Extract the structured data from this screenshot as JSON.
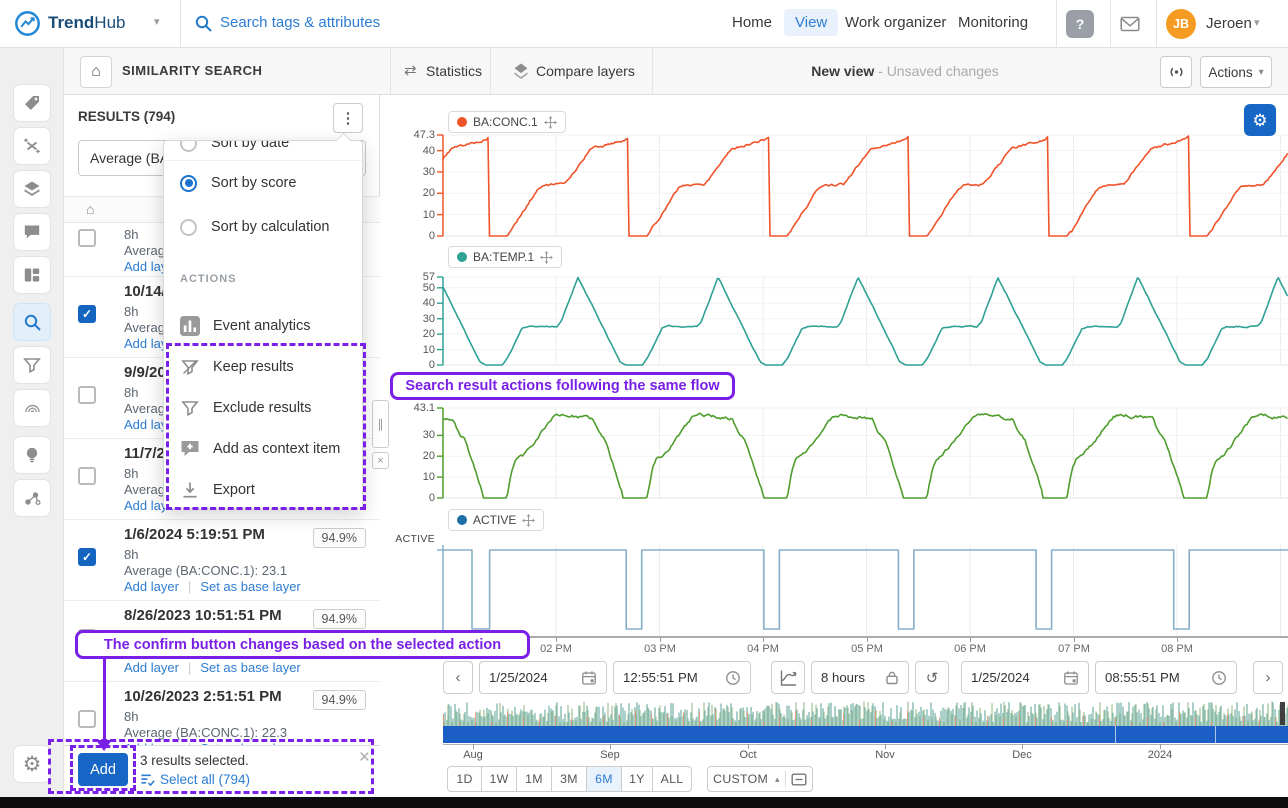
{
  "topbar": {
    "logo_bold": "Trend",
    "logo_light": "Hub",
    "search_placeholder": "Search tags & attributes",
    "nav": [
      "Home",
      "View",
      "Work organizer",
      "Monitoring"
    ],
    "active_nav": "View",
    "user": {
      "initials": "JB",
      "name": "Jeroen"
    }
  },
  "colors": {
    "accent": "#2d7dd2",
    "annotation": "#7a1fe8",
    "primary_button": "#1766c5",
    "avatar_bg": "#f59b22",
    "selection_bar": "#1b5fc6"
  },
  "sidebar": {
    "items": [
      {
        "icon": "tag"
      },
      {
        "icon": "formula"
      },
      {
        "icon": "layers"
      },
      {
        "icon": "comment"
      },
      {
        "icon": "dashboard"
      },
      {
        "icon": "search",
        "active": true
      },
      {
        "icon": "funnel"
      },
      {
        "icon": "fingerprint"
      },
      {
        "icon": "lightbulb"
      },
      {
        "icon": "nodes"
      },
      {
        "icon": "gear"
      }
    ]
  },
  "panel_header": {
    "title": "SIMILARITY SEARCH",
    "tabs": [
      {
        "label": "Statistics",
        "icon": "swap"
      },
      {
        "label": "Compare layers",
        "icon": "compare"
      }
    ],
    "view_title": "New view",
    "view_status": "- Unsaved changes",
    "actions_label": "Actions"
  },
  "results": {
    "title": "RESULTS (794)",
    "filter_value": "Average (BA",
    "items": [
      {
        "date": "",
        "duration": "8h",
        "average": "Average (B",
        "links": [
          "Add layer"
        ],
        "score": "",
        "checked": false
      },
      {
        "date": "10/14/20",
        "duration": "8h",
        "average": "Average (B",
        "links": [
          "Add layer"
        ],
        "score": "",
        "checked": true
      },
      {
        "date": "9/9/2023",
        "duration": "8h",
        "average": "Average (B",
        "links": [
          "Add layer"
        ],
        "score": "",
        "checked": false
      },
      {
        "date": "11/7/202",
        "duration": "8h",
        "average": "Average (B",
        "links": [
          "Add layer"
        ],
        "score": "",
        "checked": false
      },
      {
        "date": "1/6/2024 5:19:51 PM",
        "duration": "8h",
        "average": "Average (BA:CONC.1): 23.1",
        "links": [
          "Add layer",
          "Set as base layer"
        ],
        "score": "94.9%",
        "checked": true
      },
      {
        "date": "8/26/2023 10:51:51 PM",
        "duration": "",
        "average": "",
        "links": [
          "Add layer",
          "Set as base layer"
        ],
        "score": "94.9%",
        "checked": false
      },
      {
        "date": "10/26/2023 2:51:51 PM",
        "duration": "8h",
        "average": "Average (BA:CONC.1): 22.3",
        "links": [
          "Add layer",
          "Set as base layer"
        ],
        "score": "94.9%",
        "checked": false
      }
    ],
    "footer": {
      "confirm_label": "Add",
      "selected_text": "3 results selected.",
      "select_all": "Select all (794)"
    }
  },
  "menu": {
    "partial_option": "Sort by date",
    "options": [
      {
        "label": "Sort by score",
        "selected": true
      },
      {
        "label": "Sort by calculation",
        "selected": false
      }
    ],
    "section_label": "ACTIONS",
    "actions": [
      {
        "label": "Event analytics",
        "icon": "analytics"
      },
      {
        "label": "Keep results",
        "icon": "keep"
      },
      {
        "label": "Exclude results",
        "icon": "exclude"
      },
      {
        "label": "Add as context item",
        "icon": "context"
      },
      {
        "label": "Export",
        "icon": "export"
      }
    ]
  },
  "annotations": {
    "flow": "Search result actions following the same flow",
    "confirm": "The confirm button changes based on the selected action"
  },
  "timebar": {
    "start_date": "1/25/2024",
    "start_time": "12:55:51 PM",
    "duration": "8 hours",
    "end_date": "1/25/2024",
    "end_time": "08:55:51 PM"
  },
  "ranges": {
    "options": [
      "1D",
      "1W",
      "1M",
      "3M",
      "6M",
      "1Y",
      "ALL"
    ],
    "active": "6M",
    "custom_label": "CUSTOM"
  },
  "chart_data": {
    "type": "multi-trend",
    "x_axis": {
      "labels": [
        "02 PM",
        "03 PM",
        "04 PM",
        "05 PM",
        "06 PM",
        "07 PM",
        "08 PM"
      ],
      "start": "1/25/2024 12:55:51 PM",
      "end": "1/25/2024 08:55:51 PM",
      "duration_hours": 8
    },
    "charts": [
      {
        "name": "BA:CONC.1",
        "type": "line",
        "color": "#f0532a",
        "y_ticks": [
          "47.3",
          "40",
          "30",
          "20",
          "10",
          "0"
        ],
        "y_max": 47.3,
        "period_hours": 1.35,
        "cycle_profile": [
          [
            0,
            0
          ],
          [
            0.13,
            0
          ],
          [
            0.16,
            3
          ],
          [
            0.36,
            23
          ],
          [
            0.4,
            24
          ],
          [
            0.53,
            24
          ],
          [
            0.57,
            27
          ],
          [
            0.73,
            41
          ],
          [
            0.97,
            45
          ],
          [
            1,
            46.5
          ]
        ],
        "description": "repeating ramp to mid plateau then upper plateau, sharp drop to 0"
      },
      {
        "name": "BA:TEMP.1",
        "type": "line",
        "color": "#2fa195",
        "y_ticks": [
          "57",
          "50",
          "40",
          "30",
          "20",
          "10",
          "0"
        ],
        "y_max": 57,
        "period_hours": 1.35,
        "cycle_profile": [
          [
            0,
            57
          ],
          [
            0.3,
            2
          ],
          [
            0.34,
            0
          ],
          [
            0.46,
            0
          ],
          [
            0.5,
            5
          ],
          [
            0.6,
            24
          ],
          [
            0.64,
            25
          ],
          [
            0.85,
            25
          ],
          [
            0.88,
            28
          ],
          [
            1,
            57
          ]
        ],
        "description": "peak, decline to 0, flat, rise to mid plateau, spike back to peak"
      },
      {
        "name": null,
        "type": "line",
        "color": "#4e9d2d",
        "y_ticks": [
          "43.1",
          "30",
          "20",
          "10",
          "0"
        ],
        "y_max": 43.1,
        "period_hours": 1.35,
        "cycle_profile": [
          [
            0,
            0
          ],
          [
            0.17,
            0
          ],
          [
            0.21,
            14
          ],
          [
            0.24,
            19
          ],
          [
            0.28,
            20
          ],
          [
            0.33,
            24
          ],
          [
            0.5,
            39
          ],
          [
            0.56,
            40
          ],
          [
            0.78,
            38
          ],
          [
            0.83,
            31
          ],
          [
            0.87,
            28
          ],
          [
            1,
            2
          ]
        ],
        "description": "rounded hill cycles with flat zero valleys (series label hidden behind annotation)"
      },
      {
        "name": "ACTIVE",
        "type": "digital",
        "color": "#85afc9",
        "dot_color": "#1d6fa5",
        "levels": [
          "ACTIVE"
        ],
        "low_intervals_hours": [
          [
            0.28,
            0.45
          ],
          [
            1.77,
            1.92
          ],
          [
            3.1,
            3.25
          ],
          [
            4.4,
            4.55
          ],
          [
            5.73,
            5.88
          ],
          [
            7.06,
            7.21
          ]
        ],
        "description": "mostly high with brief low pulses"
      }
    ],
    "overview": {
      "months": [
        "Aug",
        "Sep",
        "Oct",
        "Nov",
        "Dec",
        "2024"
      ],
      "selection": "full range selected",
      "selection_color": "#1b5fc6",
      "signal_colors": [
        "#74b2a8",
        "#7fae6f",
        "#e8906a"
      ]
    }
  }
}
